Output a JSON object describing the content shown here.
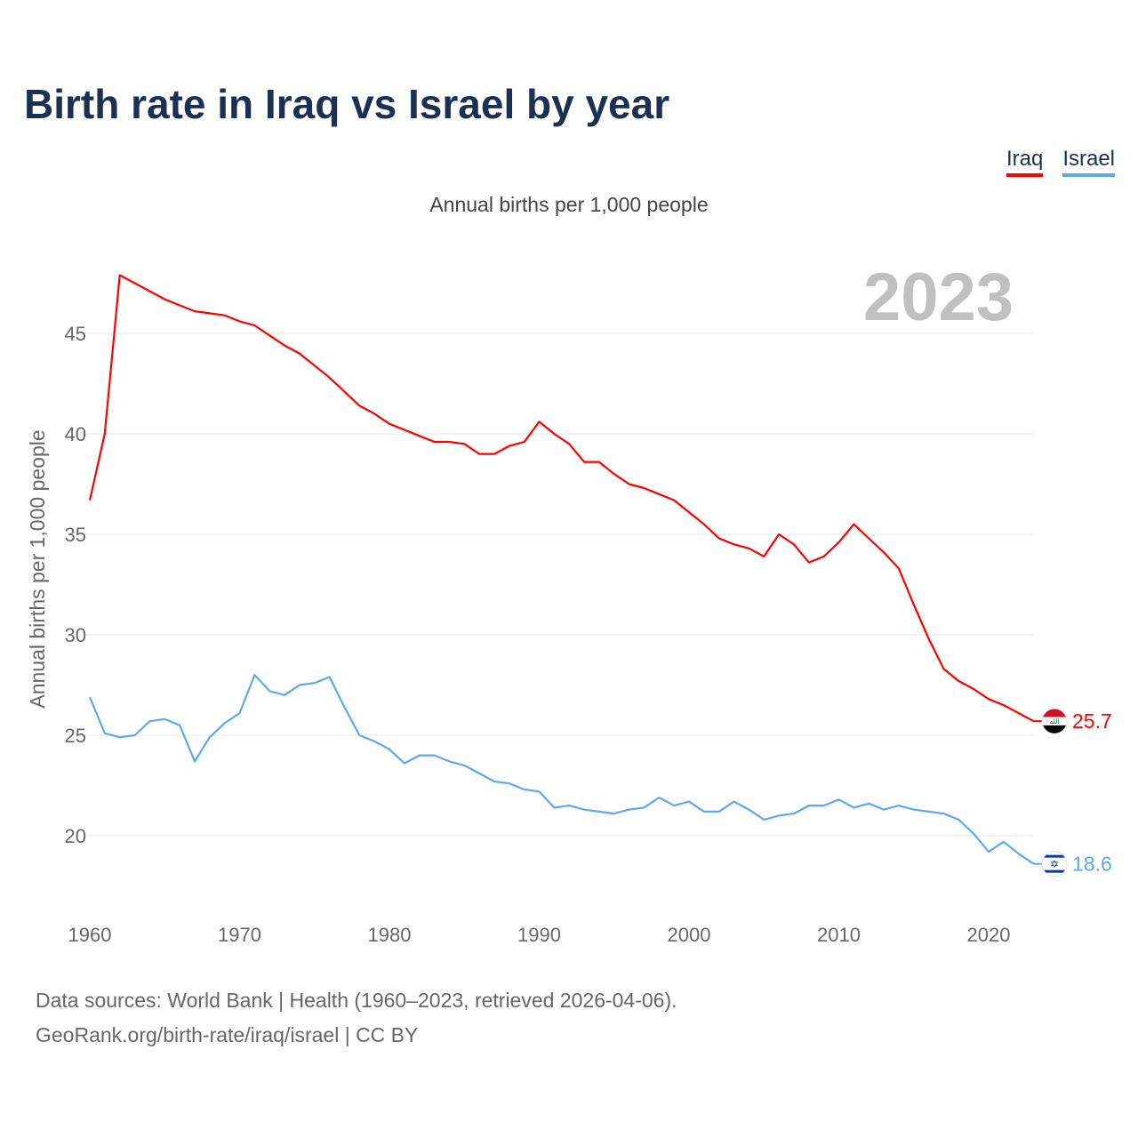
{
  "title": "Birth rate in Iraq vs Israel by year",
  "legend": [
    {
      "label": "Iraq",
      "color": "#ff0000"
    },
    {
      "label": "Israel",
      "color": "#5ea8ee"
    }
  ],
  "subtitle": "Annual births per 1,000 people",
  "year_watermark": "2023",
  "footer": {
    "line1": "Data sources: World Bank | Health (1960–2023, retrieved 2026-04-06).",
    "line2": "GeoRank.org/birth-rate/iraq/israel | CC BY"
  },
  "chart_data": {
    "type": "line",
    "title": "Birth rate in Iraq vs Israel by year",
    "xlabel": "",
    "ylabel": "Annual births per 1,000 people",
    "xlim": [
      1960,
      2023
    ],
    "ylim": [
      17,
      49
    ],
    "x_ticks": [
      1960,
      1970,
      1980,
      1990,
      2000,
      2010,
      2020
    ],
    "y_ticks": [
      20,
      25,
      30,
      35,
      40,
      45
    ],
    "grid": "horizontal",
    "legend_position": "top-right",
    "x_start": 1960,
    "series": [
      {
        "name": "Iraq",
        "color": "#ff0000",
        "end_label": "25.7",
        "values": [
          36.7,
          40.0,
          47.9,
          47.5,
          47.1,
          46.7,
          46.4,
          46.1,
          46.0,
          45.9,
          45.6,
          45.4,
          44.9,
          44.4,
          44.0,
          43.4,
          42.8,
          42.1,
          41.4,
          41.0,
          40.5,
          40.2,
          39.9,
          39.6,
          39.6,
          39.5,
          39.0,
          39.0,
          39.4,
          39.6,
          40.6,
          40.0,
          39.5,
          38.6,
          38.6,
          38.0,
          37.5,
          37.3,
          37.0,
          36.7,
          36.1,
          35.5,
          34.8,
          34.5,
          34.3,
          33.9,
          35.0,
          34.5,
          33.6,
          33.9,
          34.6,
          35.5,
          34.8,
          34.1,
          33.3,
          31.5,
          29.8,
          28.3,
          27.7,
          27.3,
          26.8,
          26.5,
          26.1,
          25.7
        ]
      },
      {
        "name": "Israel",
        "color": "#5ea8ee",
        "end_label": "18.6",
        "values": [
          26.9,
          25.1,
          24.9,
          25.0,
          25.7,
          25.8,
          25.5,
          23.7,
          24.9,
          25.6,
          26.1,
          28.0,
          27.2,
          27.0,
          27.5,
          27.6,
          27.9,
          26.4,
          25.0,
          24.7,
          24.3,
          23.6,
          24.0,
          24.0,
          23.7,
          23.5,
          23.1,
          22.7,
          22.6,
          22.3,
          22.2,
          21.4,
          21.5,
          21.3,
          21.2,
          21.1,
          21.3,
          21.4,
          21.9,
          21.5,
          21.7,
          21.2,
          21.2,
          21.7,
          21.3,
          20.8,
          21.0,
          21.1,
          21.5,
          21.5,
          21.8,
          21.4,
          21.6,
          21.3,
          21.5,
          21.3,
          21.2,
          21.1,
          20.8,
          20.1,
          19.2,
          19.7,
          19.1,
          18.6
        ]
      }
    ]
  }
}
